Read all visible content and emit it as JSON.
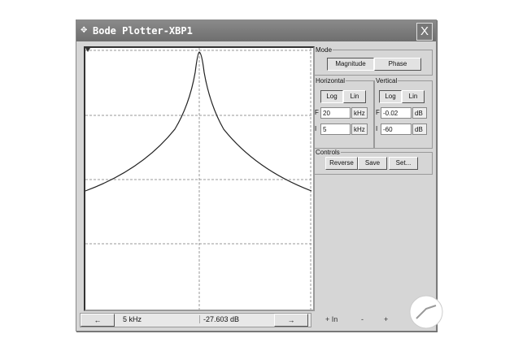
{
  "window": {
    "title": "Bode Plotter-XBP1",
    "close": "X"
  },
  "mode": {
    "label": "Mode",
    "magnitude": "Magnitude",
    "phase": "Phase",
    "selected": "Magnitude"
  },
  "horizontal": {
    "label": "Horizontal",
    "log": "Log",
    "lin": "Lin",
    "f_label": "F",
    "f_value": "20",
    "f_unit": "kHz",
    "i_label": "I",
    "i_value": "5",
    "i_unit": "kHz"
  },
  "vertical": {
    "label": "Vertical",
    "log": "Log",
    "lin": "Lin",
    "f_label": "F",
    "f_value": "-0.02",
    "f_unit": "dB",
    "i_label": "I",
    "i_value": "-60",
    "i_unit": "dB"
  },
  "controls": {
    "label": "Controls",
    "reverse": "Reverse",
    "save": "Save",
    "set": "Set..."
  },
  "readout": {
    "left_arrow": "←",
    "right_arrow": "→",
    "freq": "5 kHz",
    "mag": "-27.603 dB"
  },
  "zoom": {
    "in_label": "+ In",
    "out_label": "-",
    "plus": "+"
  }
}
